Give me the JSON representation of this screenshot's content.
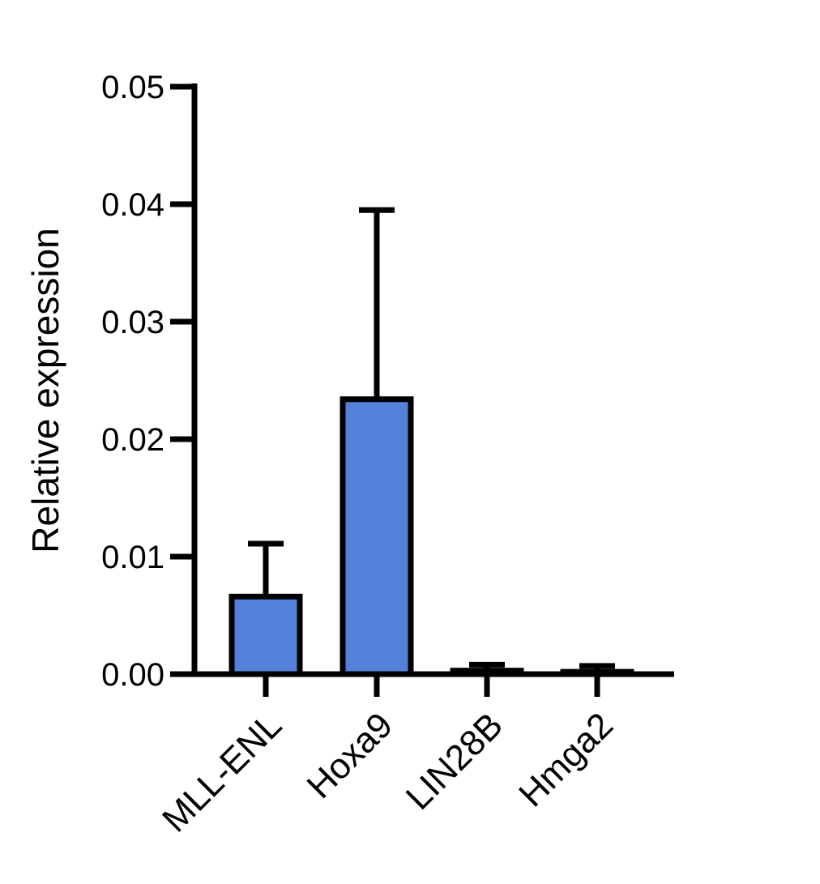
{
  "chart_data": {
    "type": "bar",
    "title": "",
    "xlabel": "",
    "ylabel": "Relative expression",
    "categories": [
      "MLL-ENL",
      "Hoxa9",
      "LIN28B",
      "Hmga2"
    ],
    "values": [
      0.0066,
      0.0234,
      0.0003,
      0.0002
    ],
    "error_upper": [
      0.0111,
      0.0395,
      0.0008,
      0.0007
    ],
    "ylim": [
      0,
      0.05
    ],
    "yticks": [
      "0.00",
      "0.01",
      "0.02",
      "0.03",
      "0.04",
      "0.05"
    ],
    "bar_color": "#5580da",
    "edge_color": "#000000",
    "grid": false,
    "legend": "none"
  }
}
